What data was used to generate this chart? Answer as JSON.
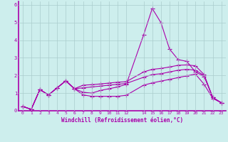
{
  "xlabel": "Windchill (Refroidissement éolien,°C)",
  "background_color": "#cdeeed",
  "grid_color": "#aacccc",
  "line_color": "#aa00aa",
  "xlim": [
    -0.5,
    23.5
  ],
  "ylim": [
    0,
    6.2
  ],
  "xticks": [
    0,
    1,
    2,
    3,
    4,
    5,
    6,
    7,
    8,
    9,
    10,
    11,
    12,
    14,
    15,
    16,
    17,
    18,
    19,
    20,
    21,
    22,
    23
  ],
  "yticks": [
    0,
    1,
    2,
    3,
    4,
    5,
    6
  ],
  "line1_x": [
    0,
    1,
    2,
    3,
    4,
    5,
    6,
    7,
    8,
    9,
    10,
    11,
    12,
    14,
    15,
    16,
    17,
    18,
    19,
    20,
    21,
    22,
    23
  ],
  "line1_y": [
    0.25,
    0.08,
    1.2,
    0.9,
    1.3,
    1.7,
    1.25,
    1.05,
    1.0,
    1.15,
    1.25,
    1.35,
    1.5,
    4.3,
    5.8,
    5.0,
    3.5,
    2.9,
    2.8,
    2.2,
    1.95,
    0.75,
    0.45
  ],
  "line2_x": [
    0,
    1,
    2,
    3,
    4,
    5,
    6,
    7,
    8,
    9,
    10,
    11,
    12,
    14,
    15,
    16,
    17,
    18,
    19,
    20,
    21,
    22,
    23
  ],
  "line2_y": [
    0.25,
    0.08,
    1.2,
    0.9,
    1.3,
    1.7,
    1.25,
    1.3,
    1.35,
    1.4,
    1.45,
    1.5,
    1.55,
    1.9,
    2.05,
    2.1,
    2.2,
    2.3,
    2.35,
    2.3,
    2.0,
    0.75,
    0.45
  ],
  "line3_x": [
    0,
    1,
    2,
    3,
    4,
    5,
    6,
    7,
    8,
    9,
    10,
    11,
    12,
    14,
    15,
    16,
    17,
    18,
    19,
    20,
    21,
    22,
    23
  ],
  "line3_y": [
    0.25,
    0.08,
    1.2,
    0.9,
    1.3,
    1.7,
    1.25,
    1.45,
    1.48,
    1.52,
    1.57,
    1.62,
    1.65,
    2.2,
    2.35,
    2.4,
    2.48,
    2.58,
    2.6,
    2.55,
    2.05,
    0.75,
    0.45
  ],
  "line4_x": [
    0,
    1,
    2,
    3,
    4,
    5,
    6,
    7,
    8,
    9,
    10,
    11,
    12,
    14,
    15,
    16,
    17,
    18,
    19,
    20,
    21,
    22,
    23
  ],
  "line4_y": [
    0.25,
    0.08,
    1.2,
    0.9,
    1.3,
    1.7,
    1.25,
    0.9,
    0.82,
    0.82,
    0.82,
    0.82,
    0.88,
    1.45,
    1.58,
    1.68,
    1.78,
    1.88,
    1.98,
    2.08,
    1.5,
    0.7,
    0.45
  ]
}
